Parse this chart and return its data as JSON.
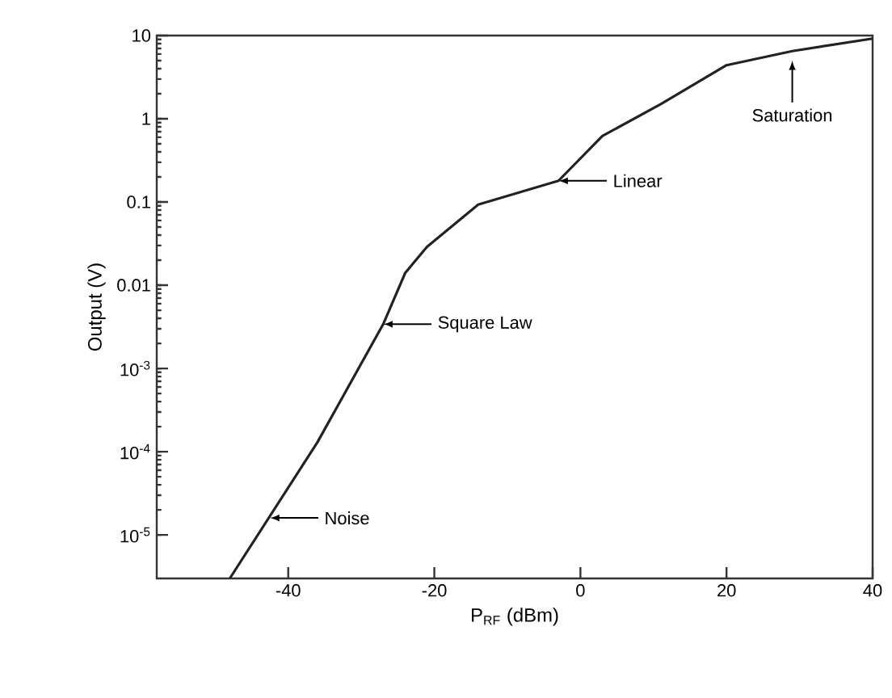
{
  "chart_data": {
    "type": "line",
    "xlabel": "P$_{RF}$ (dBm)",
    "ylabel": "Output (V)",
    "log": "y",
    "color": "#222222",
    "x": [
      -48,
      -36,
      -27,
      -24,
      -21,
      -14,
      -3,
      3,
      11,
      20,
      29,
      40
    ],
    "values": [
      3e-06,
      0.00013,
      0.0034,
      0.014,
      0.029,
      0.093,
      0.18,
      0.62,
      1.5,
      4.4,
      6.5,
      9.2
    ],
    "xlim": [
      -58,
      40
    ],
    "ylim": [
      3e-06,
      10
    ],
    "xticks": [
      -40,
      -20,
      0,
      20,
      40
    ],
    "yticks": [
      {
        "value": 1e-05,
        "label": "10$^{-5}$"
      },
      {
        "value": 0.0001,
        "label": "10$^{-4}$"
      },
      {
        "value": 0.001,
        "label": "10$^{-3}$"
      },
      0.01,
      0.1,
      1,
      10
    ],
    "grid": false,
    "marker": "none",
    "line_style": "solid",
    "annotations": [
      {
        "text": "Noise",
        "x": -42.5,
        "y": 1.6e-05
      },
      {
        "text": "Square Law",
        "x": -27,
        "y": 0.0034
      },
      {
        "text": "Linear",
        "x": -3,
        "y": 0.18
      },
      {
        "text": "Saturation",
        "x": 29,
        "y": 5
      }
    ]
  }
}
